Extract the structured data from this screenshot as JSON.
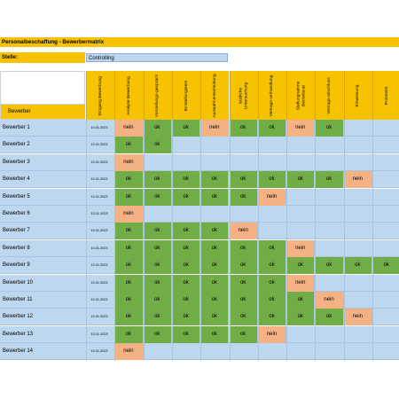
{
  "sheet": {
    "title": "Personalbeschaffung - Bewerbermatrix",
    "stelle_label": "Stelle:",
    "stelle_value": "Controlling",
    "header_corner": "Bewerber",
    "columns": [
      "Eingang Bewerbung",
      "Analyse Bewerbung",
      "Vorstellungs-gespräch",
      "Einstellungstest",
      "Auswahl-entscheidung",
      "ärztliche Untersuchung",
      "Vertrags-verhandlung",
      "Stellungnahme Betriebsrat",
      "Vertrags-abschluss",
      "Einweisung",
      "Probezeit"
    ],
    "colors": {
      "header": "#f7c300",
      "row": "#bdd7ee",
      "ok": "#70ad47",
      "nein": "#f4b183"
    },
    "rows": [
      {
        "name": "Bewerber 1",
        "date": "10.01.2023",
        "steps": [
          "nein",
          "ok",
          "ok",
          "nein",
          "ok",
          "ok",
          "nein",
          "ok"
        ]
      },
      {
        "name": "Bewerber 2",
        "date": "10.01.2023",
        "steps": [
          "ok",
          "ok"
        ]
      },
      {
        "name": "Bewerber 3",
        "date": "10.01.2023",
        "steps": [
          "nein"
        ]
      },
      {
        "name": "Bewerber 4",
        "date": "10.01.2023",
        "steps": [
          "ok",
          "ok",
          "ok",
          "ok",
          "ok",
          "ok",
          "ok",
          "ok",
          "nein"
        ]
      },
      {
        "name": "Bewerber 5",
        "date": "10.01.2023",
        "steps": [
          "ok",
          "ok",
          "ok",
          "ok",
          "ok",
          "nein"
        ]
      },
      {
        "name": "Bewerber 6",
        "date": "10.01.2023",
        "steps": [
          "nein"
        ]
      },
      {
        "name": "Bewerber 7",
        "date": "10.01.2023",
        "steps": [
          "ok",
          "ok",
          "ok",
          "ok",
          "nein"
        ]
      },
      {
        "name": "Bewerber 8",
        "date": "10.01.2023",
        "steps": [
          "ok",
          "ok",
          "ok",
          "ok",
          "ok",
          "ok",
          "nein"
        ]
      },
      {
        "name": "Bewerber 9",
        "date": "10.01.2023",
        "steps": [
          "ok",
          "ok",
          "ok",
          "ok",
          "ok",
          "ok",
          "ok",
          "ok",
          "ok",
          "ok"
        ]
      },
      {
        "name": "Bewerber 10",
        "date": "10.01.2023",
        "steps": [
          "ok",
          "ok",
          "ok",
          "ok",
          "ok",
          "ok",
          "nein"
        ]
      },
      {
        "name": "Bewerber 11",
        "date": "10.01.2023",
        "steps": [
          "ok",
          "ok",
          "ok",
          "ok",
          "ok",
          "ok",
          "ok",
          "nein"
        ]
      },
      {
        "name": "Bewerber 12",
        "date": "10.01.2023",
        "steps": [
          "ok",
          "ok",
          "ok",
          "ok",
          "ok",
          "ok",
          "ok",
          "ok",
          "nein"
        ]
      },
      {
        "name": "Bewerber 13",
        "date": "10.01.2023",
        "steps": [
          "ok",
          "ok",
          "ok",
          "ok",
          "ok",
          "nein"
        ]
      },
      {
        "name": "Bewerber 14",
        "date": "10.01.2023",
        "steps": [
          "nein"
        ]
      }
    ]
  }
}
